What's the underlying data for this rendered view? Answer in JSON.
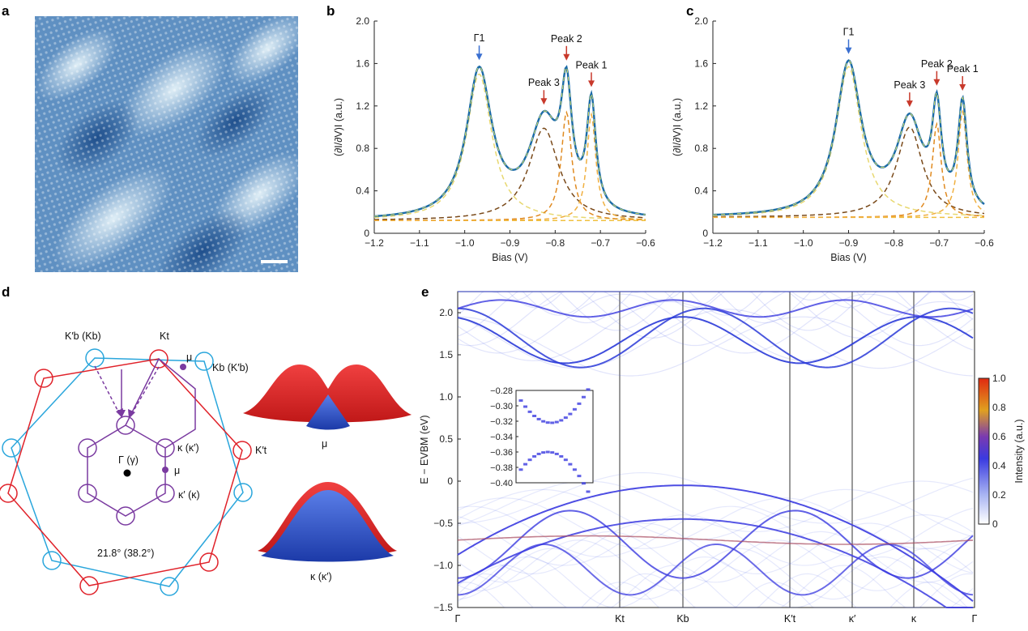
{
  "panels": {
    "a": {
      "letter": "a"
    },
    "b": {
      "letter": "b"
    },
    "c": {
      "letter": "c"
    },
    "d": {
      "letter": "d"
    },
    "e": {
      "letter": "e"
    }
  },
  "chart_data": [
    {
      "panel": "b",
      "type": "line",
      "xlabel": "Bias (V)",
      "ylabel": "(∂I/∂V)I (a.u.)",
      "xlim": [
        -1.2,
        -0.6
      ],
      "ylim": [
        0,
        2.0
      ],
      "xticks": [
        "-1.2",
        "-1.1",
        "-1.0",
        "-0.9",
        "-0.8",
        "-0.7",
        "-0.6"
      ],
      "yticks": [
        "0",
        "0.4",
        "0.8",
        "1.2",
        "1.6",
        "2.0"
      ],
      "baseline": 0.12,
      "peaks": [
        {
          "label": "Γ1",
          "name": "Gamma1",
          "pos": -0.968,
          "amp": 1.38,
          "width": 0.034,
          "color": "#3a6fd0"
        },
        {
          "label": "Peak 3",
          "name": "Peak3",
          "pos": -0.825,
          "amp": 0.87,
          "width": 0.04,
          "color": "#c8392b"
        },
        {
          "label": "Peak 2",
          "name": "Peak2",
          "pos": -0.775,
          "amp": 1.02,
          "width": 0.014,
          "color": "#c8392b"
        },
        {
          "label": "Peak 1",
          "name": "Peak1",
          "pos": -0.72,
          "amp": 1.0,
          "width": 0.012,
          "color": "#c8392b"
        }
      ]
    },
    {
      "panel": "c",
      "type": "line",
      "xlabel": "Bias (V)",
      "ylabel": "(∂I/∂V)I (a.u.)",
      "xlim": [
        -1.2,
        -0.6
      ],
      "ylim": [
        0,
        2.0
      ],
      "xticks": [
        "-1.2",
        "-1.1",
        "-1.0",
        "-0.9",
        "-0.8",
        "-0.7",
        "-0.6"
      ],
      "yticks": [
        "0",
        "0.4",
        "0.8",
        "1.2",
        "1.6",
        "2.0"
      ],
      "baseline": 0.15,
      "peaks": [
        {
          "label": "Γ1",
          "name": "Gamma1",
          "pos": -0.9,
          "amp": 1.42,
          "width": 0.034,
          "color": "#3a6fd0"
        },
        {
          "label": "Peak 3",
          "name": "Peak3",
          "pos": -0.765,
          "amp": 0.85,
          "width": 0.035,
          "color": "#c8392b"
        },
        {
          "label": "Peak 2",
          "name": "Peak2",
          "pos": -0.705,
          "amp": 0.88,
          "width": 0.012,
          "color": "#c8392b"
        },
        {
          "label": "Peak 1",
          "name": "Peak1",
          "pos": -0.648,
          "amp": 1.0,
          "width": 0.012,
          "color": "#c8392b"
        }
      ]
    },
    {
      "panel": "e",
      "type": "line",
      "ylabel": "E − EVBM (eV)",
      "ylim": [
        -1.5,
        2.25
      ],
      "yticks": [
        "-1.5",
        "-1.0",
        "-0.5",
        "0",
        "0.5",
        "1.0",
        "1.5",
        "2.0"
      ],
      "kpath": [
        "Γ",
        "Kt",
        "Kb",
        "K′t",
        "κ′",
        "κ",
        "Γ"
      ],
      "colorbar": {
        "label": "Intensity (a.u.)",
        "ticks": [
          "0",
          "0.2",
          "0.4",
          "0.6",
          "0.8",
          "1.0"
        ]
      },
      "inset": {
        "yticks": [
          "-0.28",
          "-0.30",
          "-0.32",
          "-0.34",
          "-0.36",
          "-0.38",
          "-0.40"
        ]
      }
    }
  ],
  "diagram_d": {
    "labels": {
      "kb_prime": "K′b (Kb)",
      "kt": "Kt",
      "kb": "Kb (K′b)",
      "mu_top": "μ",
      "kappa": "κ (κ′)",
      "gamma": "Γ (γ)",
      "mu_mid": "μ",
      "kappa_prime": "κ′ (κ)",
      "kt_prime": "K′t",
      "angle": "21.8° (38.2°)",
      "surf_mu": "μ",
      "surf_kappa": "κ (κ′)"
    },
    "colors": {
      "top_layer": "#e0222a",
      "bottom_layer": "#2aa6dc",
      "moire": "#7a3aa0"
    }
  }
}
